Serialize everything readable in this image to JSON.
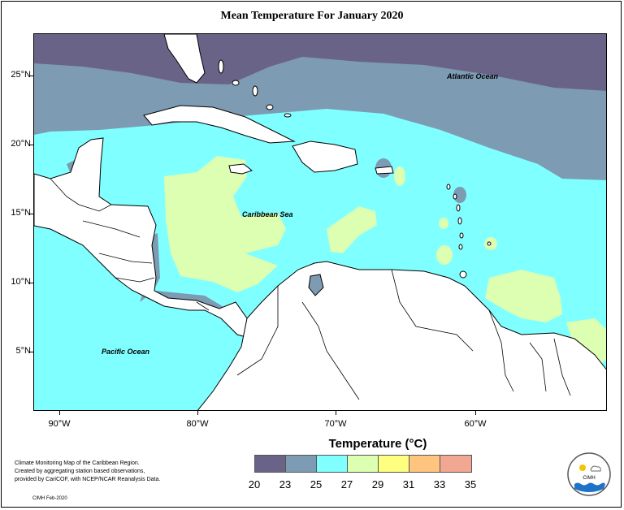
{
  "title": "Mean Temperature For January 2020",
  "legend": {
    "title": "Temperature (°C)",
    "labels": [
      "20",
      "23",
      "25",
      "27",
      "29",
      "31",
      "33",
      "35"
    ],
    "colors": [
      "#6a6388",
      "#7d9bb3",
      "#7fffff",
      "#dcffb2",
      "#ffff7f",
      "#ffc57f",
      "#f2a793"
    ]
  },
  "axes": {
    "lat_labels": [
      "25°N",
      "20°N",
      "15°N",
      "10°N",
      "5°N"
    ],
    "lon_labels": [
      "90°W",
      "80°W",
      "70°W",
      "60°W"
    ]
  },
  "labels": {
    "atlantic": "Atlantic Ocean",
    "caribbean": "Caribbean Sea",
    "pacific": "Pacific Ocean"
  },
  "note": {
    "line1": "Climate Monitoring Map of the Caribbean Region.",
    "line2": "Created by aggregating station based observations,",
    "line3": "provided by CariCOF, with NCEP/NCAR Reanalysis Data."
  },
  "credit": "CIMH Feb-2020",
  "logo_text": "CIMH"
}
